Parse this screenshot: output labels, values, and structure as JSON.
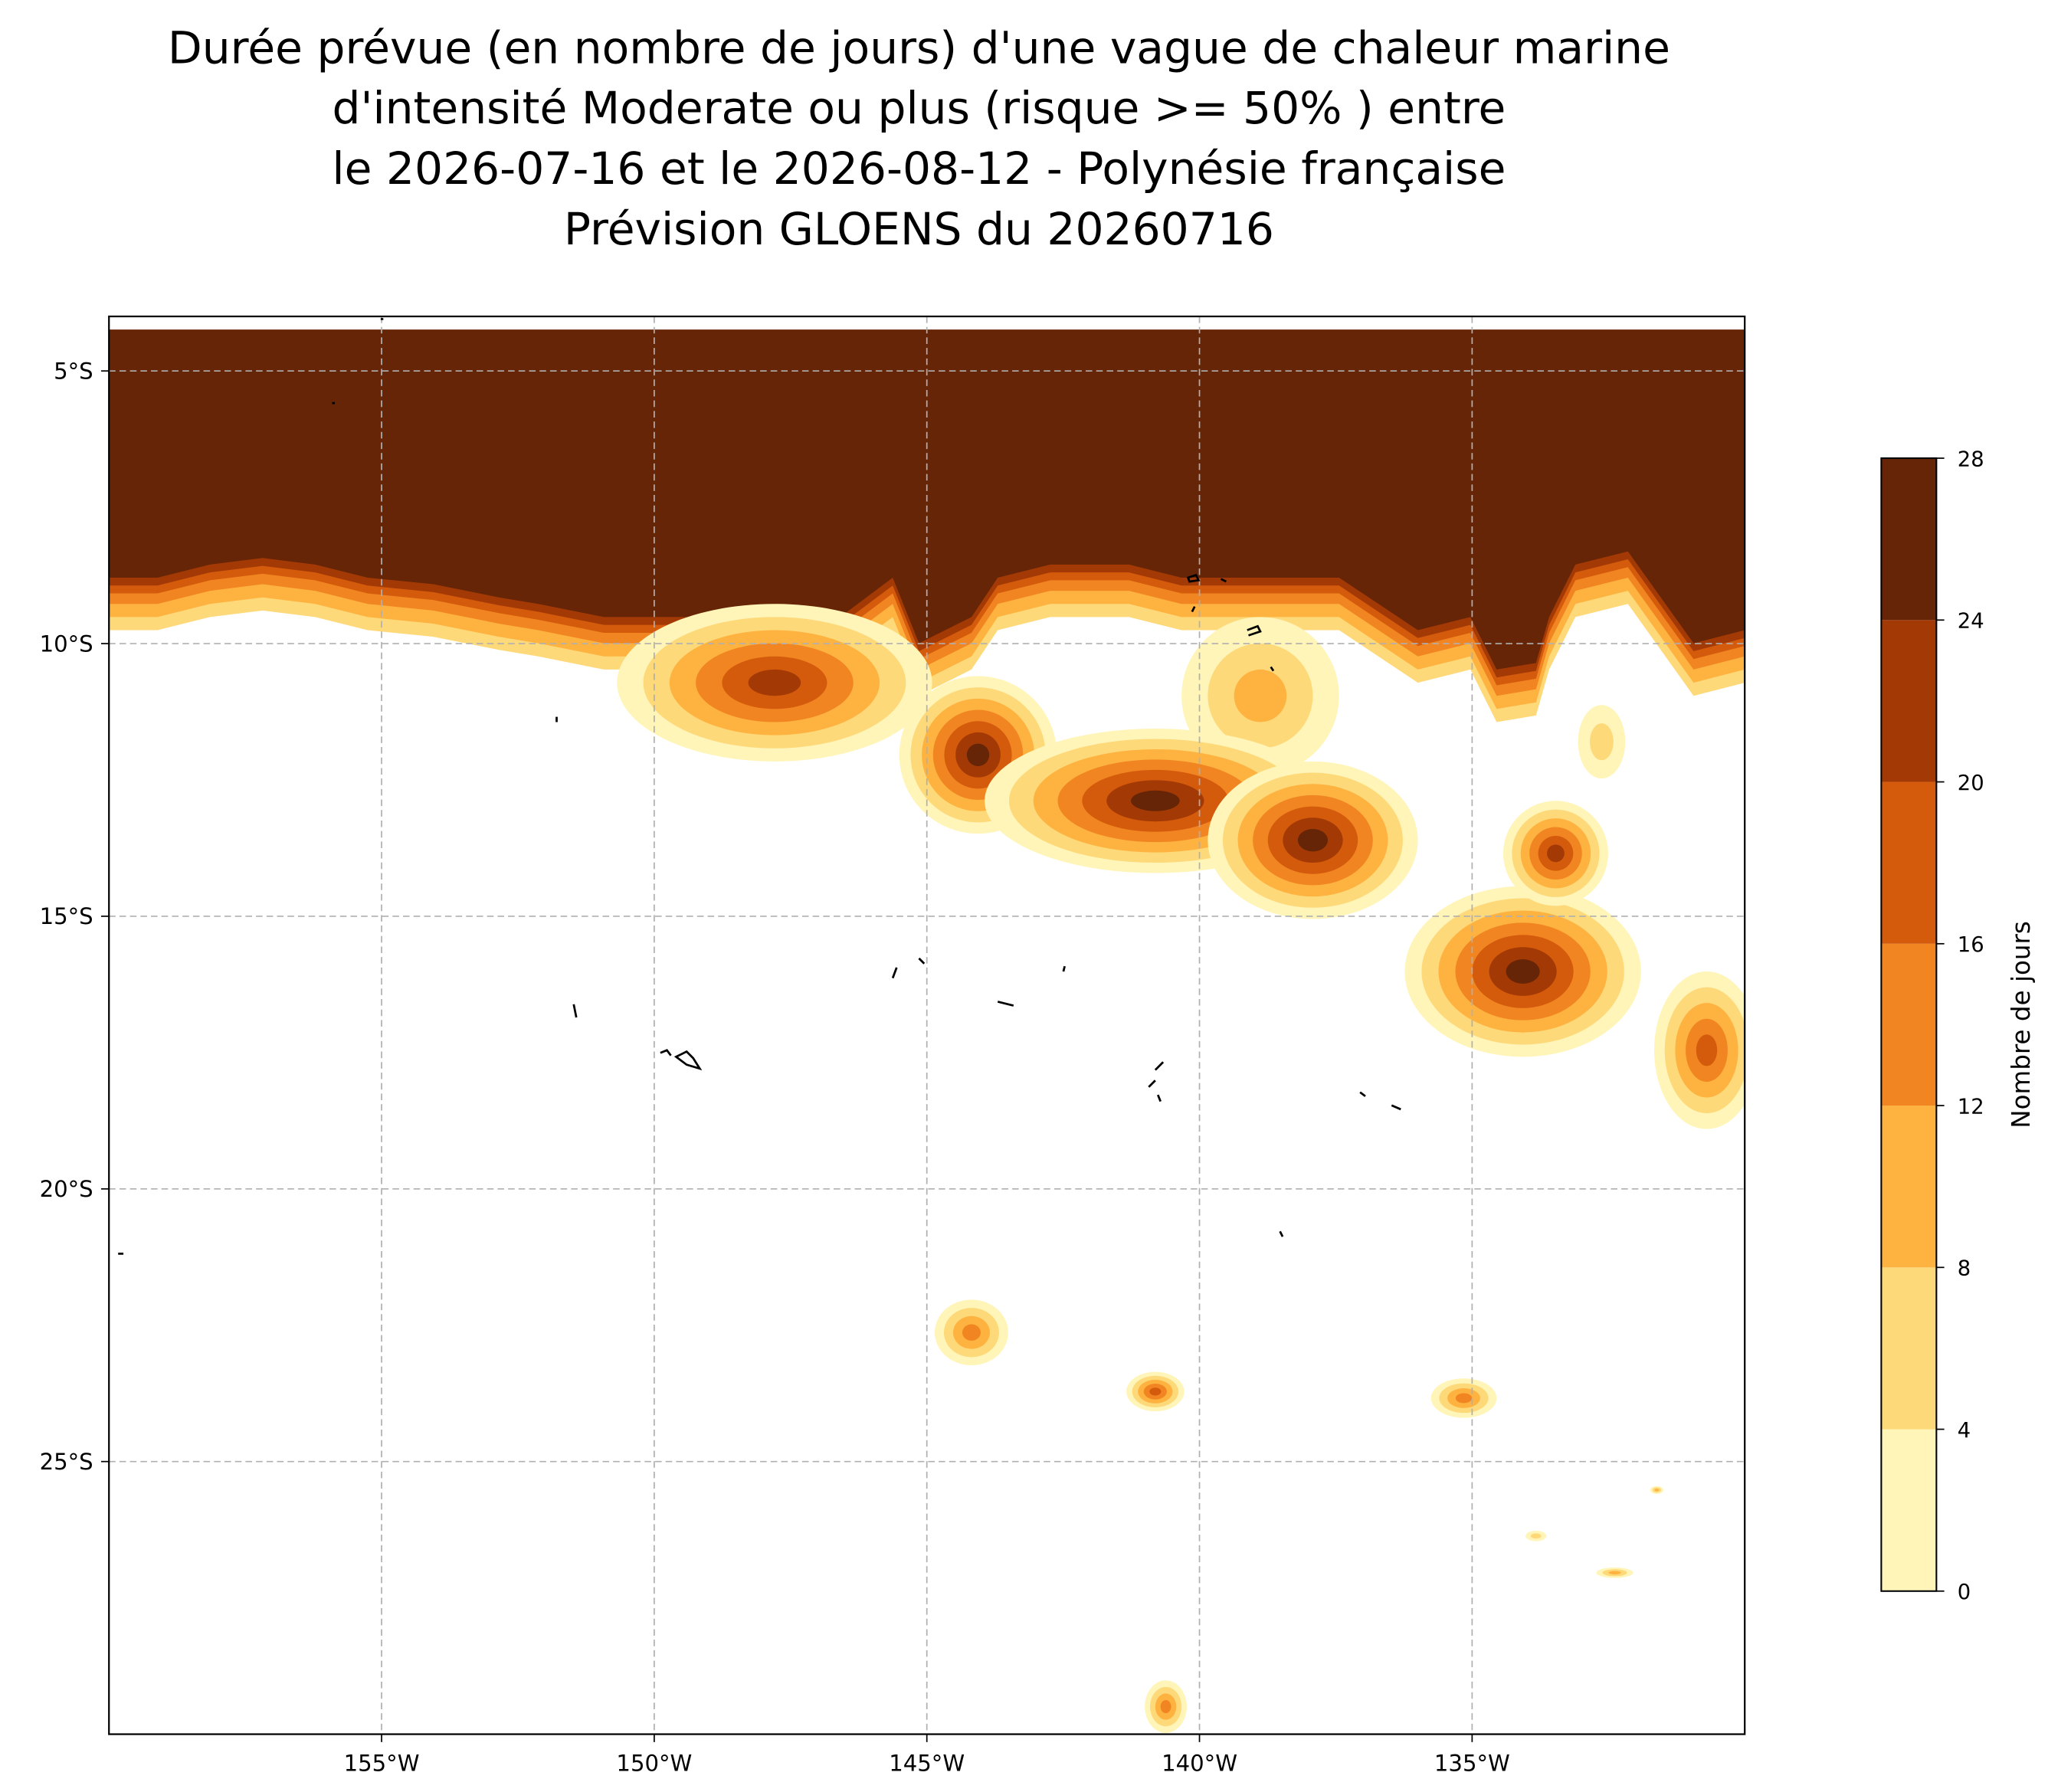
{
  "chart_data": {
    "type": "contour-map",
    "title": [
      "Durée prévue (en nombre de jours) d'une vague de chaleur marine",
      "d'intensité Moderate ou plus (risque >= 50% ) entre",
      "le 2026-07-16 et le 2026-08-12 - Polynésie française",
      "Prévision GLOENS du 20260716"
    ],
    "xlim": [
      -160,
      -130
    ],
    "ylim": [
      -30,
      -4
    ],
    "xticks": [
      {
        "value": -155,
        "label": "155°W"
      },
      {
        "value": -150,
        "label": "150°W"
      },
      {
        "value": -145,
        "label": "145°W"
      },
      {
        "value": -140,
        "label": "140°W"
      },
      {
        "value": -135,
        "label": "135°W"
      }
    ],
    "yticks": [
      {
        "value": -5,
        "label": "5°S"
      },
      {
        "value": -10,
        "label": "10°S"
      },
      {
        "value": -15,
        "label": "15°S"
      },
      {
        "value": -20,
        "label": "20°S"
      },
      {
        "value": -25,
        "label": "25°S"
      }
    ],
    "grid": true,
    "colorbar": {
      "label": "Nombre de jours",
      "lim": [
        0,
        28
      ],
      "ticks": [
        0,
        4,
        8,
        12,
        16,
        20,
        24,
        28
      ],
      "colors": [
        "#fff5b8",
        "#fed97a",
        "#feb23f",
        "#f08522",
        "#d45a0c",
        "#a33a05",
        "#662506"
      ]
    }
  }
}
